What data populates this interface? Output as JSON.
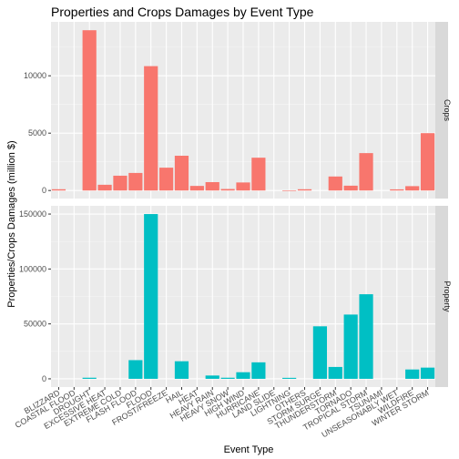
{
  "chart_data": {
    "type": "bar",
    "title": "Properties and Crops Damages by Event Type",
    "xlabel": "Event Type",
    "ylabel": "Properties/Crops Damages (million $)",
    "grid": true,
    "legend": "none",
    "categories": [
      "BLIZZARD",
      "COASTAL FLOOD",
      "DROUGHT",
      "EXCESSIVE HEAT",
      "EXTREME COLD",
      "FLASH FLOOD",
      "FLOOD",
      "FROST/FREEZE",
      "HAIL",
      "HEAT",
      "HEAVY RAIN",
      "HEAVY SNOW",
      "HIGH WIND",
      "HURRICANE",
      "LAND SLIDE",
      "LIGHTNING",
      "OTHERS",
      "STORM SURGE",
      "THUNDERSTORM",
      "TORNADO",
      "TROPICAL STORM",
      "TSUNAMI",
      "UNSEASONABLY WET",
      "WILDFIRE",
      "WINTER STORM"
    ],
    "panels": [
      {
        "name": "Crops",
        "color": "#F8766D",
        "ylim": [
          -700,
          14700
        ],
        "yticks": [
          0,
          5000,
          10000
        ],
        "values": [
          110,
          0,
          13970,
          500,
          1290,
          1530,
          10840,
          1990,
          3030,
          400,
          730,
          130,
          700,
          2860,
          0,
          10,
          110,
          0,
          1220,
          420,
          3260,
          0,
          100,
          380,
          5000
        ]
      },
      {
        "name": "Property",
        "color": "#00BFC4",
        "ylim": [
          -7500,
          157500
        ],
        "yticks": [
          0,
          50000,
          100000,
          150000
        ],
        "values": [
          0,
          0,
          1000,
          0,
          0,
          17000,
          150000,
          0,
          16000,
          0,
          3000,
          1000,
          6000,
          15000,
          0,
          900,
          0,
          47800,
          10800,
          58500,
          77000,
          0,
          0,
          8500,
          10200
        ]
      }
    ]
  }
}
